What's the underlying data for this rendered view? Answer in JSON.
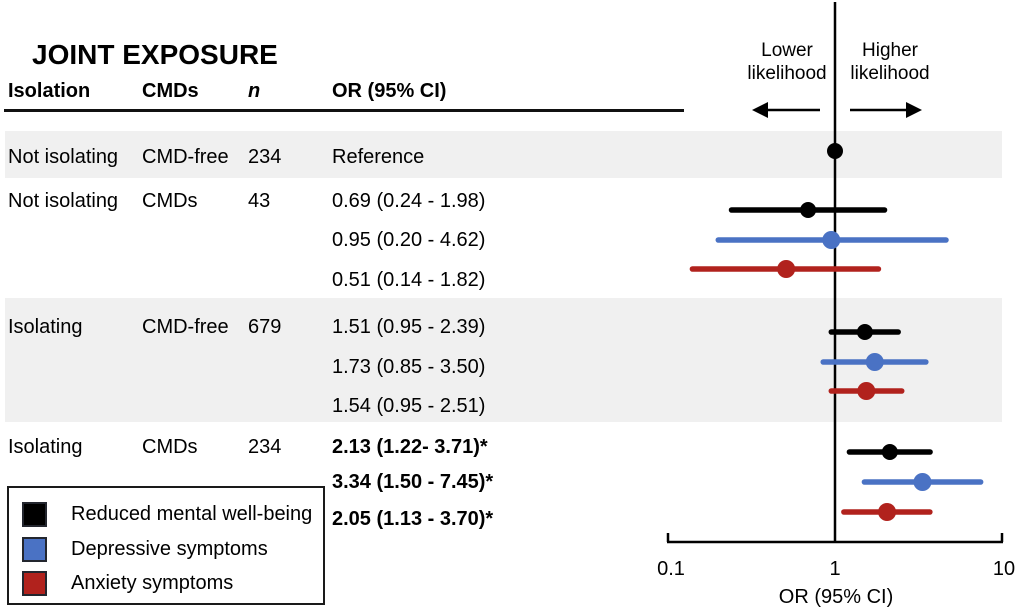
{
  "title": "JOINT EXPOSURE",
  "columns": {
    "isolation": "Isolation",
    "cmds": "CMDs",
    "n": "n",
    "or": "OR (95% CI)"
  },
  "direction_labels": {
    "left": "Lower likelihood",
    "right": "Higher likelihood"
  },
  "axis": {
    "tick_01": "0.1",
    "tick_1": "1",
    "tick_10": "10",
    "label": "OR (95% CI)"
  },
  "legend": [
    {
      "label": "Reduced mental well-being",
      "color": "#000000"
    },
    {
      "label": "Depressive symptoms",
      "color": "#4a72c4"
    },
    {
      "label": "Anxiety symptoms",
      "color": "#b1221d"
    }
  ],
  "chart_data": {
    "type": "forest",
    "title": "JOINT EXPOSURE",
    "x_axis": {
      "scale": "log10",
      "range": [
        0.1,
        10
      ],
      "ticks": [
        0.1,
        1,
        10
      ],
      "label": "OR (95% CI)",
      "reference_line": 1
    },
    "legend_position": "bottom-left",
    "series_colors": {
      "Reduced mental well-being": "#000000",
      "Depressive symptoms": "#4a72c4",
      "Anxiety symptoms": "#b1221d"
    },
    "rows": [
      {
        "isolation": "Not isolating",
        "cmds": "CMD-free",
        "n": "234",
        "or_text": "Reference",
        "outcome": "Reduced mental well-being",
        "or": 1.0,
        "ci_low": null,
        "ci_high": null,
        "bold": false,
        "reference": true,
        "shaded": true
      },
      {
        "isolation": "Not isolating",
        "cmds": "CMDs",
        "n": "43",
        "or_text": "0.69 (0.24 - 1.98)",
        "outcome": "Reduced mental well-being",
        "or": 0.69,
        "ci_low": 0.24,
        "ci_high": 1.98,
        "bold": false,
        "reference": false,
        "shaded": false
      },
      {
        "or_text": "0.95 (0.20 - 4.62)",
        "outcome": "Depressive symptoms",
        "or": 0.95,
        "ci_low": 0.2,
        "ci_high": 4.62,
        "bold": false,
        "reference": false,
        "shaded": false
      },
      {
        "or_text": "0.51 (0.14 - 1.82)",
        "outcome": "Anxiety symptoms",
        "or": 0.51,
        "ci_low": 0.14,
        "ci_high": 1.82,
        "bold": false,
        "reference": false,
        "shaded": false
      },
      {
        "isolation": "Isolating",
        "cmds": "CMD-free",
        "n": "679",
        "or_text": "1.51 (0.95 - 2.39)",
        "outcome": "Reduced mental well-being",
        "or": 1.51,
        "ci_low": 0.95,
        "ci_high": 2.39,
        "bold": false,
        "reference": false,
        "shaded": true
      },
      {
        "or_text": "1.73 (0.85 - 3.50)",
        "outcome": "Depressive symptoms",
        "or": 1.73,
        "ci_low": 0.85,
        "ci_high": 3.5,
        "bold": false,
        "reference": false,
        "shaded": true
      },
      {
        "or_text": "1.54 (0.95 - 2.51)",
        "outcome": "Anxiety symptoms",
        "or": 1.54,
        "ci_low": 0.95,
        "ci_high": 2.51,
        "bold": false,
        "reference": false,
        "shaded": true
      },
      {
        "isolation": "Isolating",
        "cmds": "CMDs",
        "n": "234",
        "or_text": "2.13 (1.22- 3.71)*",
        "outcome": "Reduced mental well-being",
        "or": 2.13,
        "ci_low": 1.22,
        "ci_high": 3.71,
        "bold": true,
        "reference": false,
        "shaded": false
      },
      {
        "or_text": "3.34 (1.50 - 7.45)*",
        "outcome": "Depressive symptoms",
        "or": 3.34,
        "ci_low": 1.5,
        "ci_high": 7.45,
        "bold": true,
        "reference": false,
        "shaded": false
      },
      {
        "or_text": "2.05 (1.13 - 3.70)*",
        "outcome": "Anxiety symptoms",
        "or": 2.05,
        "ci_low": 1.13,
        "ci_high": 3.7,
        "bold": true,
        "reference": false,
        "shaded": false
      }
    ]
  }
}
